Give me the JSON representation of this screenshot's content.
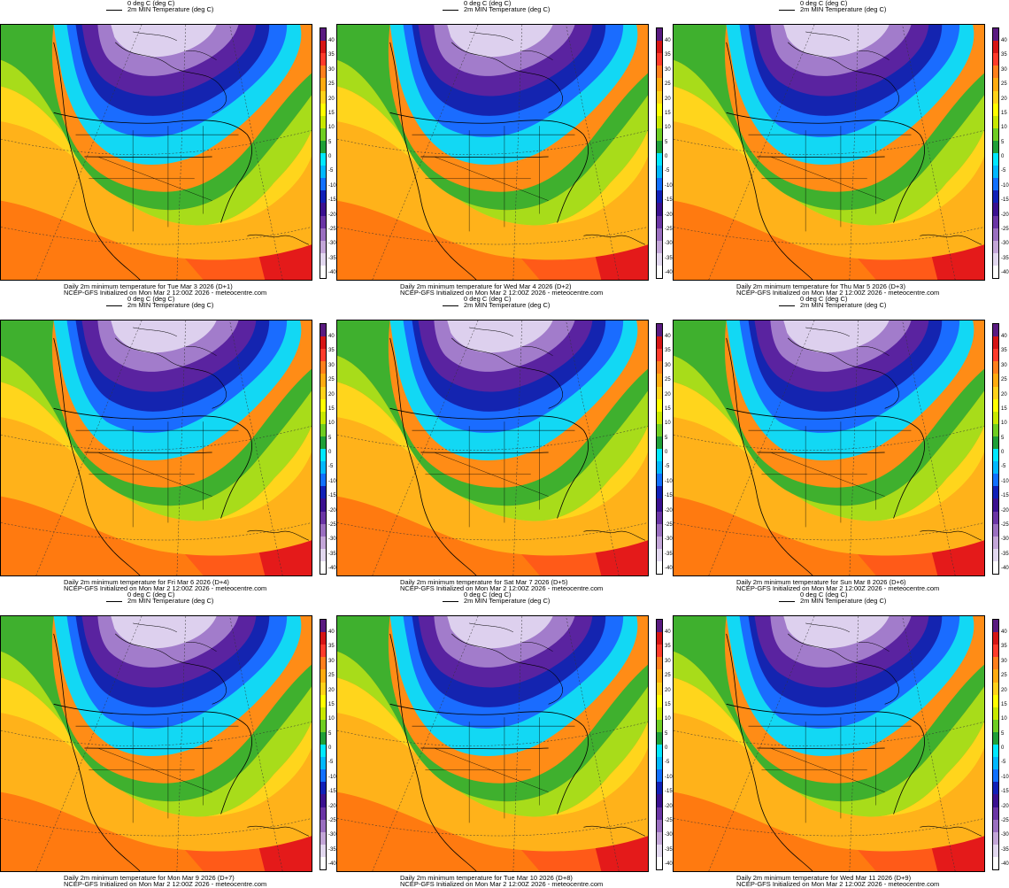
{
  "legend": {
    "zero_line": "0 deg C (deg C)",
    "min_temp": "2m MIN Temperature (deg C)"
  },
  "colorbar": {
    "ticks": [
      "40",
      "35",
      "30",
      "25",
      "20",
      "15",
      "10",
      "5",
      "0",
      "-5",
      "-10",
      "-15",
      "-20",
      "-25",
      "-30",
      "-35",
      "-40"
    ],
    "colors": [
      "#5a1a80",
      "#d61515",
      "#ff3b2b",
      "#ff7f1c",
      "#ffab10",
      "#ffd21a",
      "#ffff00",
      "#c8e800",
      "#6fce22",
      "#1fa038",
      "#00e8ff",
      "#00b8ff",
      "#1070ff",
      "#1020b8",
      "#3a1090",
      "#6a35a5",
      "#9a6fc0",
      "#c3a6d8",
      "#e2d8ef",
      "#ffffff"
    ]
  },
  "init_text": "NCEP-GFS Initialized on Mon Mar 2 12:00Z 2026 - meteocentre.com",
  "panels": [
    {
      "title": "Daily 2m minimum temperature for Tue Mar 3 2026 (D+1)"
    },
    {
      "title": "Daily 2m minimum temperature for Wed Mar 4 2026 (D+2)"
    },
    {
      "title": "Daily 2m minimum temperature for Thu Mar 5 2026 (D+3)"
    },
    {
      "title": "Daily 2m minimum temperature for Fri Mar 6 2026 (D+4)"
    },
    {
      "title": "Daily 2m minimum temperature for Sat Mar 7 2026 (D+5)"
    },
    {
      "title": "Daily 2m minimum temperature for Sun Mar 8 2026 (D+6)"
    },
    {
      "title": "Daily 2m minimum temperature for Mon Mar 9 2026 (D+7)"
    },
    {
      "title": "Daily 2m minimum temperature for Tue Mar 10 2026 (D+8)"
    },
    {
      "title": "Daily 2m minimum temperature for Wed Mar 11 2026 (D+9)"
    }
  ]
}
